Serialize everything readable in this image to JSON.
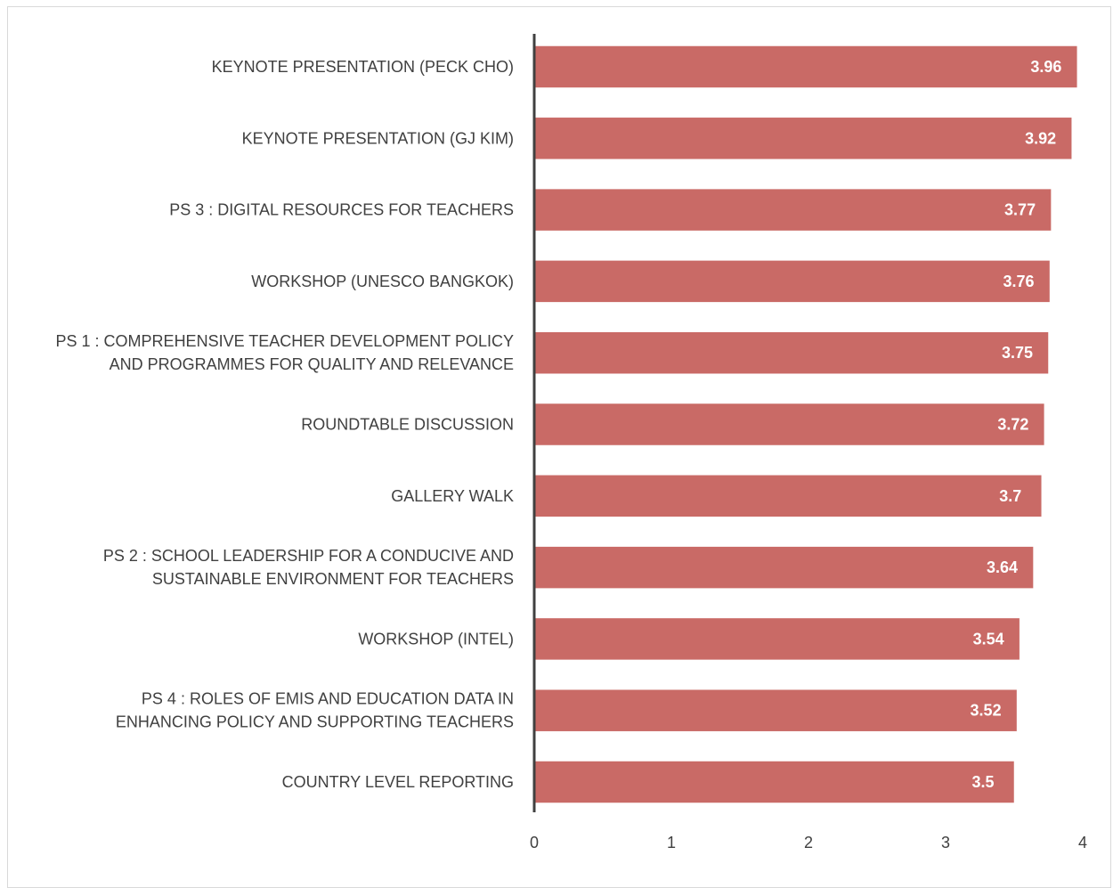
{
  "chart_data": {
    "type": "bar",
    "orientation": "horizontal",
    "title": "",
    "xlabel": "",
    "ylabel": "",
    "xlim": [
      0,
      4
    ],
    "x_ticks": [
      "0",
      "1",
      "2",
      "3",
      "4"
    ],
    "grid": false,
    "legend": "none",
    "bar_color": "#c96a66",
    "axis_color": "#404040",
    "categories": [
      [
        "KEYNOTE PRESENTATION (PECK CHO)"
      ],
      [
        "KEYNOTE PRESENTATION (GJ KIM)"
      ],
      [
        "PS 3 : DIGITAL RESOURCES FOR TEACHERS"
      ],
      [
        "WORKSHOP (UNESCO BANGKOK)"
      ],
      [
        "PS 1 : COMPREHENSIVE TEACHER DEVELOPMENT POLICY",
        "AND PROGRAMMES FOR QUALITY AND RELEVANCE"
      ],
      [
        "ROUNDTABLE DISCUSSION"
      ],
      [
        "GALLERY WALK"
      ],
      [
        "PS 2 : SCHOOL LEADERSHIP FOR A CONDUCIVE AND",
        "SUSTAINABLE ENVIRONMENT FOR TEACHERS"
      ],
      [
        "WORKSHOP (INTEL)"
      ],
      [
        "PS 4 : ROLES OF EMIS AND EDUCATION DATA IN",
        "ENHANCING POLICY AND SUPPORTING TEACHERS"
      ],
      [
        "COUNTRY LEVEL REPORTING"
      ]
    ],
    "values": [
      3.96,
      3.92,
      3.77,
      3.76,
      3.75,
      3.72,
      3.7,
      3.64,
      3.54,
      3.52,
      3.5
    ],
    "data_labels": [
      "3.96",
      "3.92",
      "3.77",
      "3.76",
      "3.75",
      "3.72",
      "3.7",
      "3.64",
      "3.54",
      "3.52",
      "3.5"
    ]
  }
}
